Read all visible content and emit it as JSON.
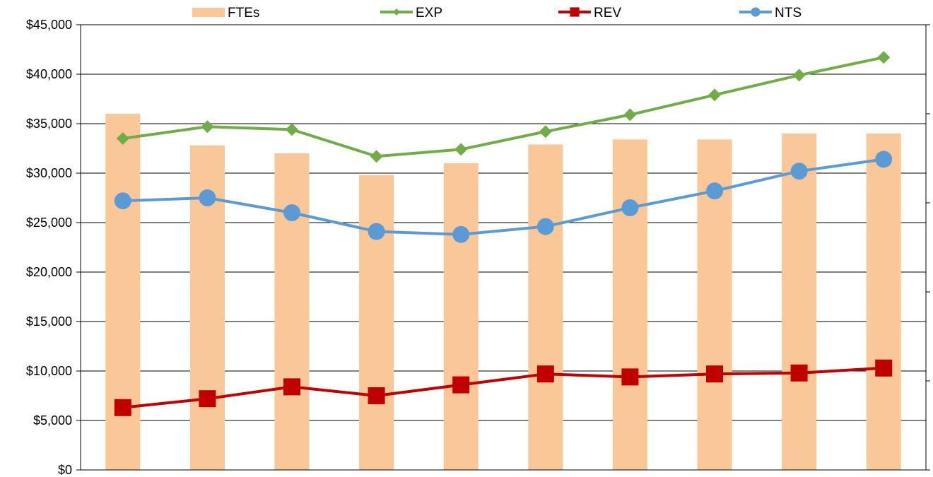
{
  "chart_data": {
    "type": "bar",
    "title": "",
    "xlabel": "",
    "ylabel": "",
    "categories": [
      "",
      "",
      "",
      "",
      "",
      "",
      "",
      "",
      "",
      ""
    ],
    "ylim": [
      0,
      45000
    ],
    "y_ticks": [
      "$0",
      "$5,000",
      "$10,000",
      "$15,000",
      "$20,000",
      "$25,000",
      "$30,000",
      "$35,000",
      "$40,000",
      "$45,000"
    ],
    "y_tick_values": [
      0,
      5000,
      10000,
      15000,
      20000,
      25000,
      30000,
      35000,
      40000,
      45000
    ],
    "grid": true,
    "legend_position": "top",
    "secondary_axis": {
      "side": "right",
      "labels_visible": false,
      "tick_count": 5
    },
    "series": [
      {
        "name": "FTEs",
        "kind": "bar",
        "color": "#FAC898",
        "values": [
          36000,
          32800,
          32000,
          29800,
          31000,
          32900,
          33400,
          33400,
          34000,
          34000
        ]
      },
      {
        "name": "EXP",
        "kind": "line",
        "marker": "diamond",
        "color": "#70AD47",
        "values": [
          33500,
          34700,
          34400,
          31700,
          32400,
          34200,
          35900,
          37900,
          39900,
          41700
        ]
      },
      {
        "name": "REV",
        "kind": "line",
        "marker": "square",
        "color": "#C00000",
        "values": [
          6300,
          7200,
          8400,
          7500,
          8600,
          9700,
          9400,
          9700,
          9800,
          10300
        ]
      },
      {
        "name": "NTS",
        "kind": "line",
        "marker": "circle",
        "color": "#5B9BD5",
        "values": [
          27200,
          27500,
          26000,
          24100,
          23800,
          24600,
          26500,
          28200,
          30200,
          31400
        ]
      }
    ]
  }
}
